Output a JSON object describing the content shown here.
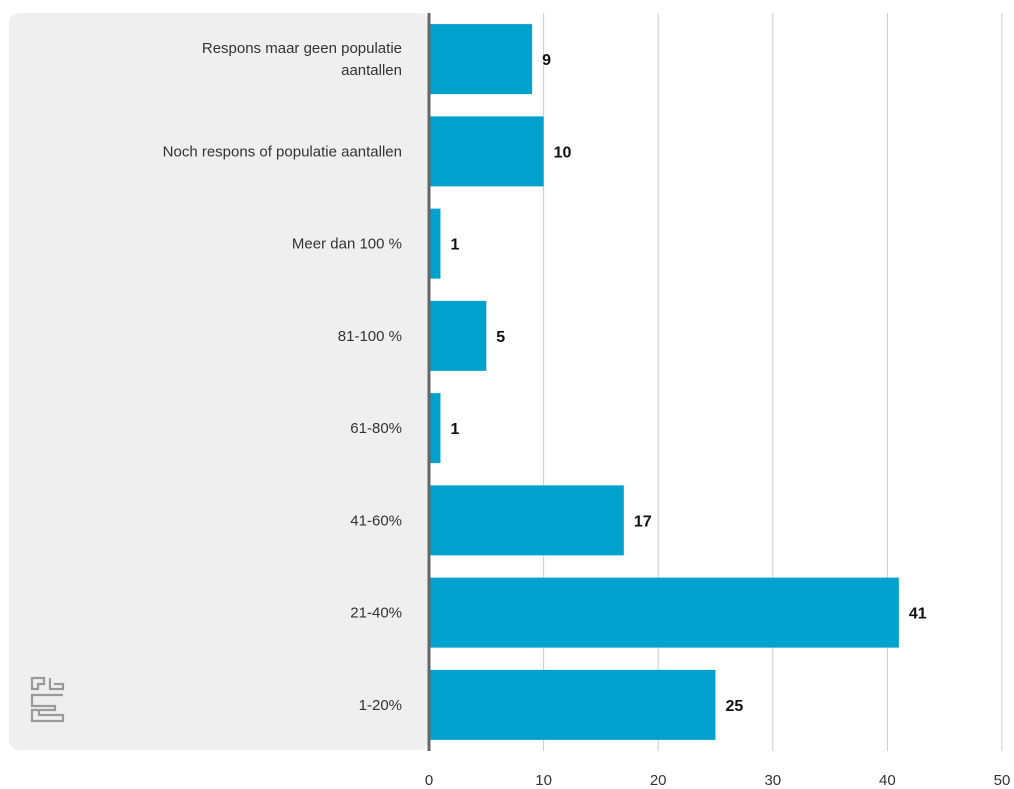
{
  "chart_data": {
    "type": "bar",
    "orientation": "horizontal",
    "categories": [
      [
        "Respons maar geen populatie",
        "aantallen"
      ],
      [
        "Noch respons of populatie aantallen"
      ],
      [
        "Meer dan 100 %"
      ],
      [
        "81-100 %"
      ],
      [
        "61-80%"
      ],
      [
        "41-60%"
      ],
      [
        "21-40%"
      ],
      [
        "1-20%"
      ]
    ],
    "values": [
      9,
      10,
      1,
      5,
      1,
      17,
      41,
      25
    ],
    "xlim": [
      0,
      50
    ],
    "xticks": [
      0,
      10,
      20,
      30,
      40,
      50
    ],
    "grid": "vertical",
    "title": "",
    "xlabel": "",
    "ylabel": ""
  },
  "colors": {
    "bar": "#00a1cd",
    "label_panel": "#efefef",
    "axis": "#666666",
    "grid": "#cccccc",
    "logo": "#9a9a9a"
  },
  "logo": {
    "icon": "cbs-logo-icon"
  }
}
